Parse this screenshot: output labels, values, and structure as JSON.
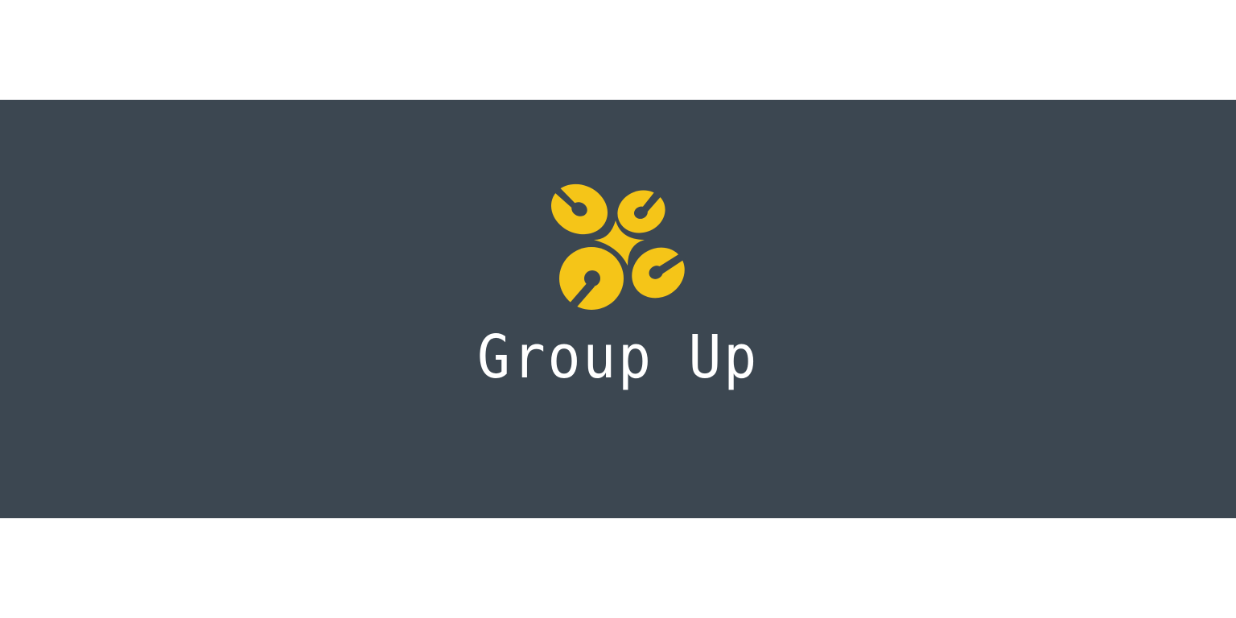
{
  "brand": {
    "name": "Group Up",
    "mark_icon": "four-ring-cluster-logo-icon",
    "colors": {
      "band": "#3c4751",
      "mark": "#f5c518",
      "text": "#ffffff",
      "page": "#ffffff"
    }
  }
}
